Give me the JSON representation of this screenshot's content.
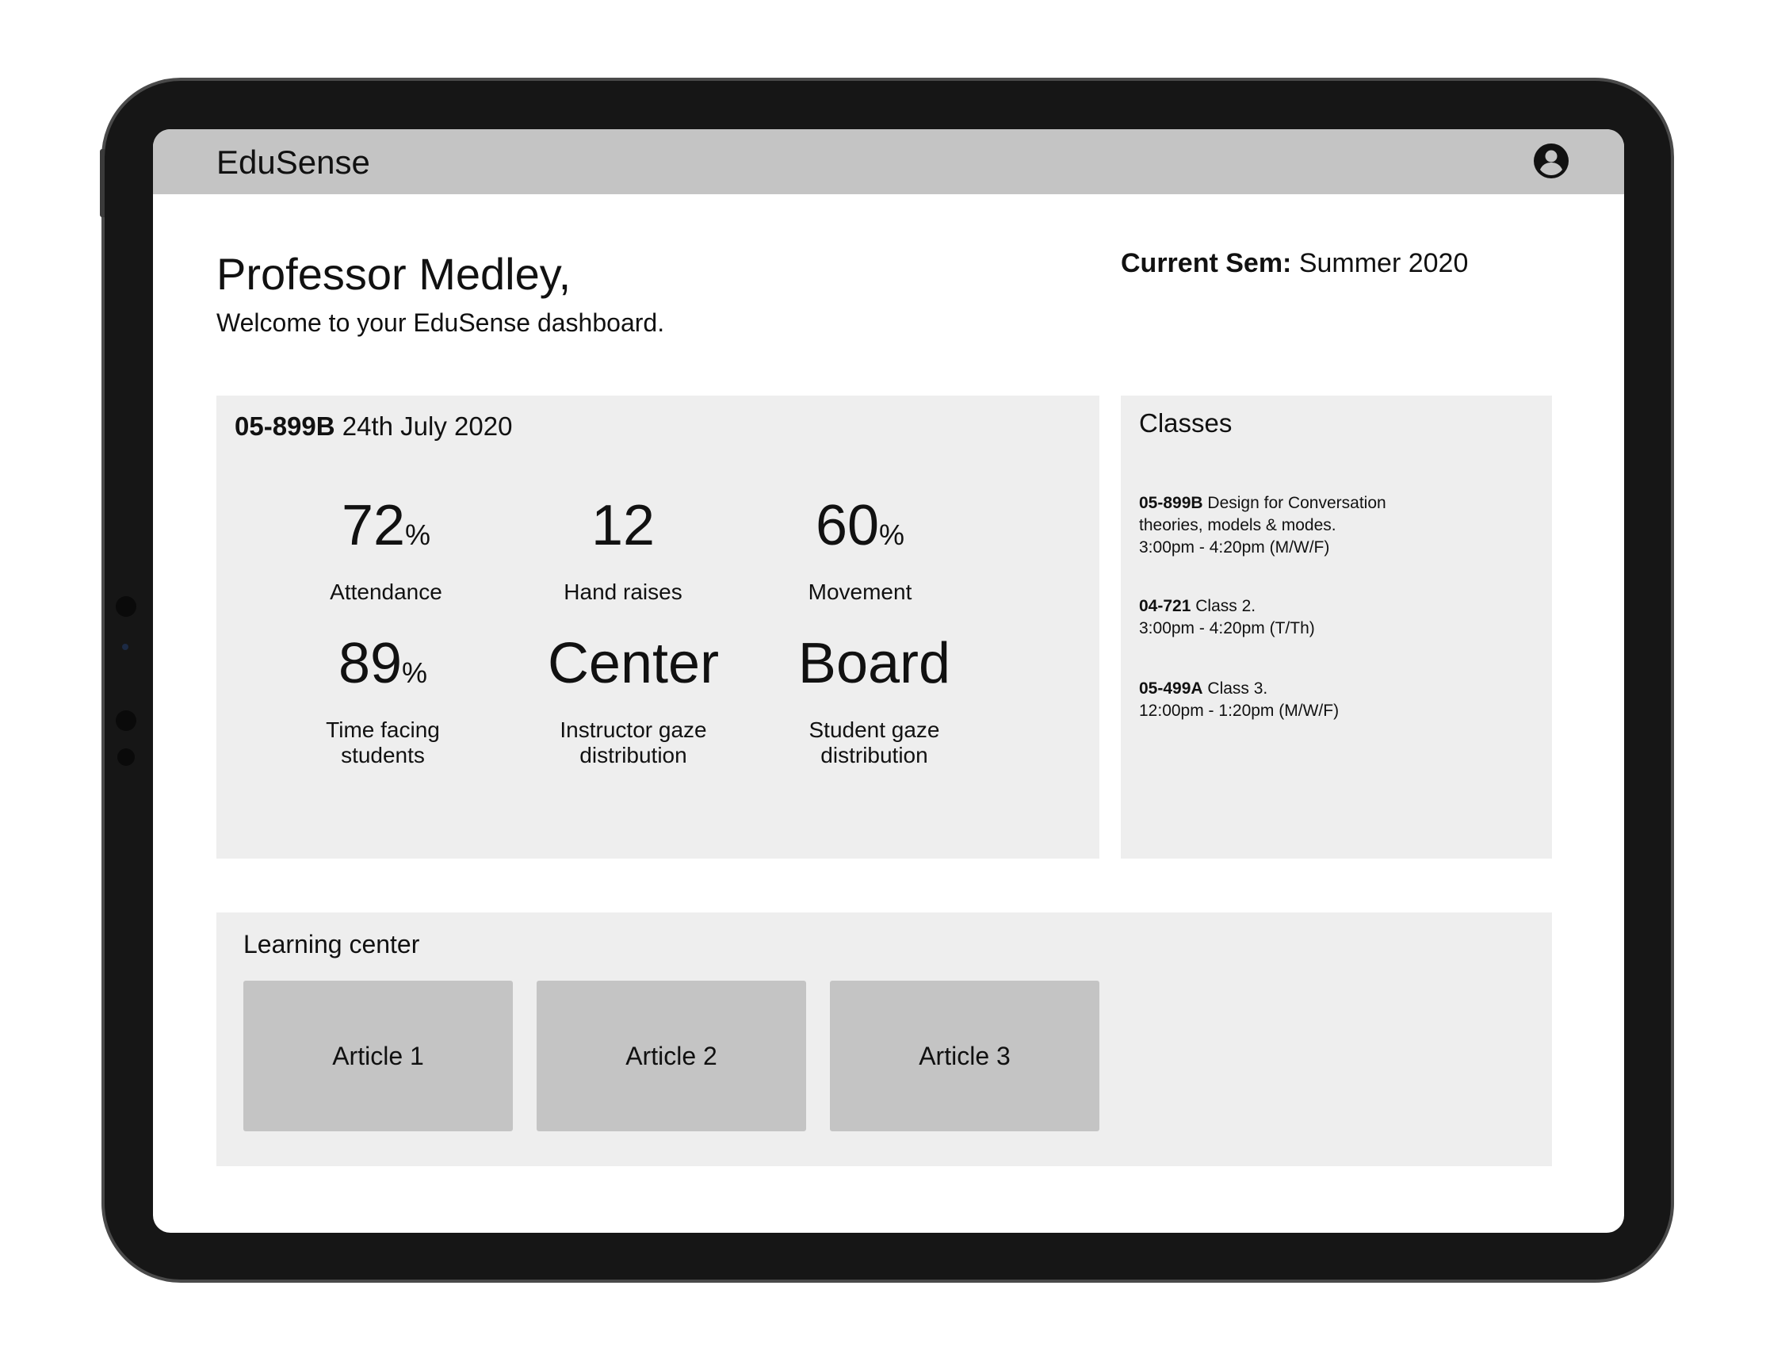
{
  "app": {
    "title": "EduSense"
  },
  "header": {
    "greeting": "Professor Medley,",
    "welcome": "Welcome to your EduSense dashboard.",
    "sem_label": "Current Sem:",
    "sem_value": "Summer 2020"
  },
  "session": {
    "course_code": "05-899B",
    "date": "24th July 2020",
    "metrics": [
      {
        "value": "72",
        "unit": "%",
        "label": "Attendance"
      },
      {
        "value": "12",
        "unit": "",
        "label": "Hand raises"
      },
      {
        "value": "60",
        "unit": "%",
        "label": "Movement"
      },
      {
        "value": "89",
        "unit": "%",
        "label": "Time facing students"
      },
      {
        "value": "Center",
        "unit": "",
        "label": "Instructor gaze distribution"
      },
      {
        "value": "Board",
        "unit": "",
        "label": "Student gaze distribution"
      }
    ]
  },
  "classes": {
    "title": "Classes",
    "items": [
      {
        "code": "05-899B",
        "name": "Design for Conversation",
        "name2": "theories, models & modes.",
        "time": "3:00pm - 4:20pm (M/W/F)"
      },
      {
        "code": "04-721",
        "name": "Class 2.",
        "name2": "",
        "time": "3:00pm - 4:20pm (T/Th)"
      },
      {
        "code": "05-499A",
        "name": "Class 3.",
        "name2": "",
        "time": "12:00pm - 1:20pm (M/W/F)"
      }
    ]
  },
  "learning": {
    "title": "Learning center",
    "articles": [
      "Article 1",
      "Article 2",
      "Article 3"
    ]
  },
  "icons": {
    "account": "account-circle-icon"
  }
}
